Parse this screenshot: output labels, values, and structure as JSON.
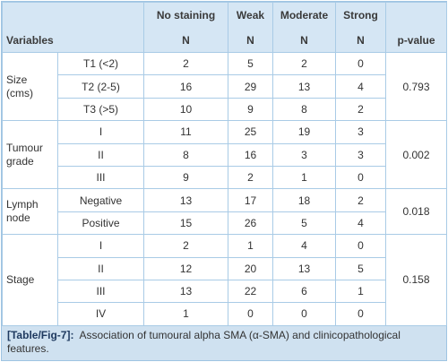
{
  "table": {
    "header": {
      "variables": "Variables",
      "columns": [
        "No staining",
        "Weak",
        "Moderate",
        "Strong"
      ],
      "unit": "N",
      "p_value": "p-value"
    },
    "groups": [
      {
        "label": "Size (cms)",
        "p_value": 0.793,
        "rows": [
          {
            "sub": "T1 (<2)",
            "values": [
              2,
              5,
              2,
              0
            ]
          },
          {
            "sub": "T2 (2-5)",
            "values": [
              16,
              29,
              13,
              4
            ]
          },
          {
            "sub": "T3 (>5)",
            "values": [
              10,
              9,
              8,
              2
            ]
          }
        ]
      },
      {
        "label": "Tumour grade",
        "p_value": 0.002,
        "rows": [
          {
            "sub": "I",
            "values": [
              11,
              25,
              19,
              3
            ]
          },
          {
            "sub": "II",
            "values": [
              8,
              16,
              3,
              3
            ]
          },
          {
            "sub": "III",
            "values": [
              9,
              2,
              1,
              0
            ]
          }
        ]
      },
      {
        "label": "Lymph node",
        "p_value": 0.018,
        "rows": [
          {
            "sub": "Negative",
            "values": [
              13,
              17,
              18,
              2
            ]
          },
          {
            "sub": "Positive",
            "values": [
              15,
              26,
              5,
              4
            ]
          }
        ]
      },
      {
        "label": "Stage",
        "p_value": 0.158,
        "rows": [
          {
            "sub": "I",
            "values": [
              2,
              1,
              4,
              0
            ]
          },
          {
            "sub": "II",
            "values": [
              12,
              20,
              13,
              5
            ]
          },
          {
            "sub": "III",
            "values": [
              13,
              22,
              6,
              1
            ]
          },
          {
            "sub": "IV",
            "values": [
              1,
              0,
              0,
              0
            ]
          }
        ]
      }
    ],
    "caption": {
      "tag": "[Table/Fig-7]:",
      "text": "Association of tumoural alpha SMA (α-SMA) and clinicopathological features."
    }
  }
}
